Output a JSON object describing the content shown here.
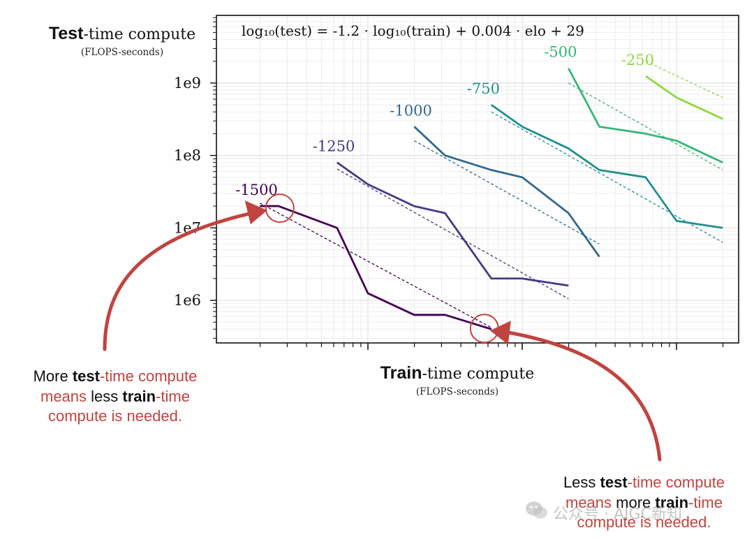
{
  "chart_data": {
    "type": "line",
    "title": "log₁₀(test) = -1.2 · log₁₀(train) + 0.004 · elo + 29",
    "ylabel_bold": "Test",
    "ylabel_rest": "-time compute",
    "ylabel_units": "(FLOPS-seconds)",
    "xlabel_bold": "Train",
    "xlabel_rest": "-time compute",
    "xlabel_units": "(FLOPS-seconds)",
    "yscale": "log",
    "xscale": "log",
    "y_ticks": [
      {
        "value": 1000000,
        "label": "1e6"
      },
      {
        "value": 10000000,
        "label": "1e7"
      },
      {
        "value": 100000000,
        "label": "1e8"
      },
      {
        "value": 1000000000,
        "label": "1e9"
      }
    ],
    "x_decades_log10": [
      0,
      1,
      2
    ],
    "ylim": [
      200000,
      6000000000
    ],
    "grid": true,
    "series": [
      {
        "name": "-1500",
        "color": "#440154",
        "points": [
          [
            -0.7,
            20000000
          ],
          [
            -0.58,
            20000000
          ],
          [
            -0.2,
            10000000
          ],
          [
            0.0,
            1250000
          ],
          [
            0.3,
            630000
          ],
          [
            0.5,
            630000
          ],
          [
            0.8,
            400000
          ]
        ],
        "fit": [
          [
            -0.7,
            22000000
          ],
          [
            0.8,
            420000
          ]
        ]
      },
      {
        "name": "-1250",
        "color": "#443a83",
        "points": [
          [
            -0.2,
            80000000
          ],
          [
            0.0,
            40000000
          ],
          [
            0.3,
            20000000
          ],
          [
            0.5,
            16000000
          ],
          [
            0.8,
            2000000
          ],
          [
            1.0,
            2000000
          ],
          [
            1.3,
            1600000
          ]
        ],
        "fit": [
          [
            -0.2,
            65000000
          ],
          [
            1.3,
            1050000
          ]
        ]
      },
      {
        "name": "-1000",
        "color": "#31688e",
        "points": [
          [
            0.3,
            250000000
          ],
          [
            0.5,
            100000000
          ],
          [
            0.8,
            63000000
          ],
          [
            1.0,
            50000000
          ],
          [
            1.3,
            16000000
          ],
          [
            1.5,
            4000000
          ]
        ],
        "fit": [
          [
            0.3,
            160000000
          ],
          [
            1.5,
            6000000
          ]
        ]
      },
      {
        "name": "-750",
        "color": "#21908d",
        "points": [
          [
            0.8,
            500000000
          ],
          [
            1.0,
            250000000
          ],
          [
            1.3,
            125000000
          ],
          [
            1.5,
            63000000
          ],
          [
            1.8,
            50000000
          ],
          [
            2.0,
            12500000
          ],
          [
            2.3,
            10000000
          ]
        ],
        "fit": [
          [
            0.8,
            400000000
          ],
          [
            2.3,
            6300000
          ]
        ]
      },
      {
        "name": "-500",
        "color": "#35b779",
        "points": [
          [
            1.3,
            1600000000
          ],
          [
            1.5,
            250000000
          ],
          [
            1.8,
            200000000
          ],
          [
            2.0,
            160000000
          ],
          [
            2.3,
            80000000
          ]
        ],
        "fit": [
          [
            1.3,
            1000000000
          ],
          [
            2.3,
            63000000
          ]
        ]
      },
      {
        "name": "-250",
        "color": "#8fd744",
        "points": [
          [
            1.8,
            1250000000
          ],
          [
            2.0,
            630000000
          ],
          [
            2.3,
            320000000
          ]
        ],
        "fit": [
          [
            1.8,
            2000000000
          ],
          [
            2.3,
            630000000
          ]
        ]
      }
    ]
  },
  "annotations": {
    "left_note": {
      "line1_a": "More ",
      "line1_b": "test",
      "line1_c": "-time compute",
      "line2_a": "means ",
      "line2_b": "less ",
      "line2_c": "train",
      "line2_d": "-time",
      "line3": "compute is needed."
    },
    "right_note": {
      "line1_a": "Less ",
      "line1_b": "test",
      "line1_c": "-time compute",
      "line2_a": "means ",
      "line2_b": "more ",
      "line2_c": "train",
      "line2_d": "-time",
      "line3": "compute is needed."
    },
    "arrow_color": "#c0443f"
  },
  "watermark": "公众号 · AIGC新知"
}
